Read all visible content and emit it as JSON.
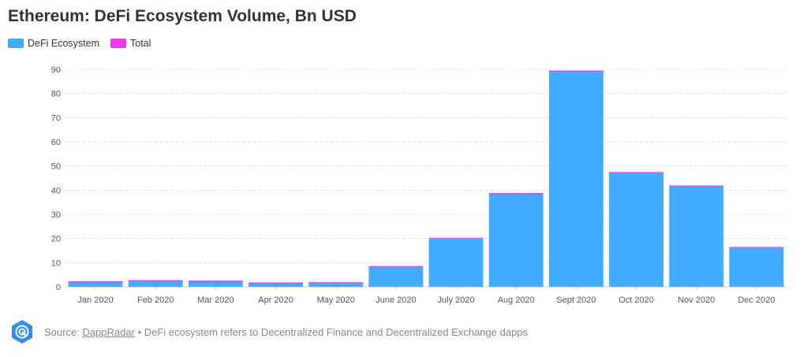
{
  "chart_data": {
    "type": "bar",
    "stacked": true,
    "title": "Ethereum: DeFi Ecosystem Volume, Bn USD",
    "xlabel": "",
    "ylabel": "",
    "ylim": [
      0,
      90
    ],
    "yticks": [
      0,
      10,
      20,
      30,
      40,
      50,
      60,
      70,
      80,
      90
    ],
    "grid": true,
    "legend_position": "top-left",
    "categories": [
      "Jan 2020",
      "Feb 2020",
      "Mar 2020",
      "Apr 2020",
      "May 2020",
      "June 2020",
      "July 2020",
      "Aug 2020",
      "Sept 2020",
      "Oct 2020",
      "Nov 2020",
      "Dec 2020"
    ],
    "series": [
      {
        "name": "DeFi Ecosystem",
        "color": "#42adff",
        "values": [
          1.8,
          2.3,
          2.1,
          1.3,
          1.4,
          8.1,
          19.8,
          38.3,
          89.0,
          47.0,
          41.4,
          16.0
        ]
      },
      {
        "name": "Total",
        "color": "#e83bea",
        "values": [
          0.1,
          0.1,
          0.1,
          0.1,
          0.1,
          0.1,
          0.3,
          0.4,
          0.5,
          0.4,
          0.4,
          0.1
        ]
      }
    ]
  },
  "footer": {
    "source_label": "Source:",
    "source_link": "DappRadar",
    "note": "• DeFi ecosystem refers to Decentralized Finance and Decentralized Exchange dapps",
    "logo_icon": "dappradar-logo-icon"
  }
}
